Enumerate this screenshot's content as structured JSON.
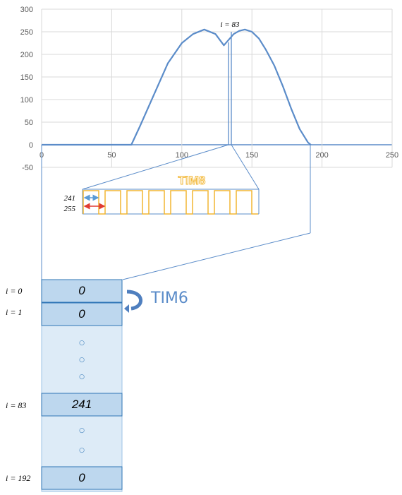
{
  "chart_data": {
    "type": "line",
    "title": "",
    "xlabel": "",
    "ylabel": "",
    "xlim": [
      0,
      250
    ],
    "ylim": [
      -50,
      300
    ],
    "xticks": [
      0,
      50,
      100,
      150,
      200,
      250
    ],
    "yticks": [
      300,
      250,
      200,
      150,
      100,
      50,
      0,
      -50
    ],
    "grid": true,
    "series": [
      {
        "color": "#5b8cc9",
        "x": [
          0,
          64,
          70,
          80,
          90,
          100,
          108,
          116,
          124,
          130,
          137,
          141,
          145,
          150,
          155,
          160,
          166,
          172,
          178,
          184,
          190,
          192
        ],
        "y": [
          0,
          0,
          40,
          110,
          180,
          225,
          245,
          255,
          245,
          220,
          245,
          252,
          255,
          250,
          235,
          210,
          175,
          130,
          80,
          35,
          5,
          0
        ]
      }
    ],
    "annotation": "i = 83"
  },
  "tim8": {
    "label": "TIM8",
    "label_241": "241",
    "label_255": "255"
  },
  "tim6": {
    "label": "TIM6"
  },
  "array": {
    "cells": [
      {
        "index_label": "i = 0",
        "value": "0"
      },
      {
        "index_label": "i = 1",
        "value": "0"
      },
      {
        "index_label": "i = 83",
        "value": "241"
      },
      {
        "index_label": "i = 192",
        "value": "0"
      }
    ],
    "ellipsis": "○"
  },
  "colors": {
    "line": "#5b8cc9",
    "grid": "#d9d9d9",
    "tim8": "#f2b632",
    "arrow_blue": "#5b9bd5",
    "arrow_red": "#e03c31",
    "cell_dark": "#bdd7ee",
    "cell_light": "#ddebf7",
    "cell_border": "#2e75b6"
  }
}
